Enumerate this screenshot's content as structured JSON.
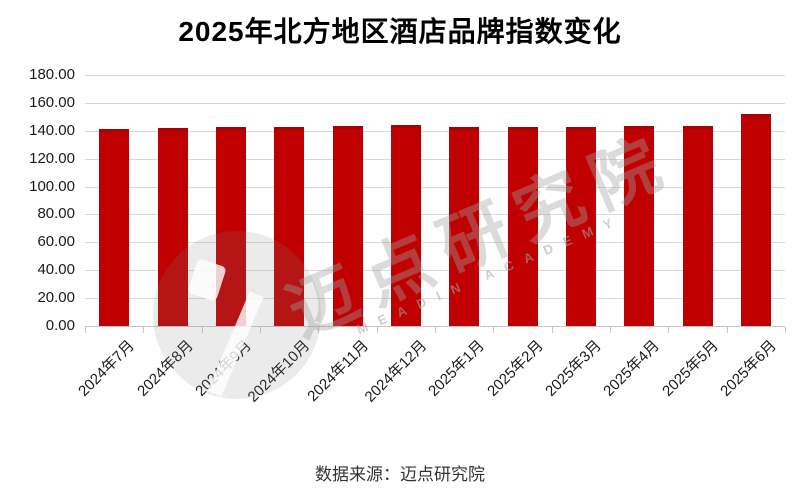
{
  "chart_data": {
    "type": "bar",
    "title": "2025年北方地区酒店品牌指数变化",
    "categories": [
      "2024年7月",
      "2024年8月",
      "2024年9月",
      "2024年10月",
      "2024年11月",
      "2024年12月",
      "2025年1月",
      "2025年2月",
      "2025年3月",
      "2025年4月",
      "2025年5月",
      "2025年6月"
    ],
    "values": [
      141.4,
      142.2,
      142.9,
      142.7,
      143.4,
      143.9,
      143.0,
      142.8,
      142.7,
      143.2,
      143.7,
      152.1
    ],
    "xlabel": "",
    "ylabel": "",
    "ylim": [
      0,
      180
    ],
    "y_tick_step": 20,
    "y_tick_labels": [
      "0.00",
      "20.00",
      "40.00",
      "60.00",
      "80.00",
      "100.00",
      "120.00",
      "140.00",
      "160.00",
      "180.00"
    ],
    "grid": true,
    "legend_position": "none",
    "bar_color": "#C00000",
    "gridline_color": "#D9D9D9"
  },
  "watermark": {
    "main_text": "迈点研究院",
    "sub_text": "MEADIN ACADEMY",
    "logo": "meadin-logo-circle"
  },
  "footer": {
    "source": "数据来源：迈点研究院"
  }
}
